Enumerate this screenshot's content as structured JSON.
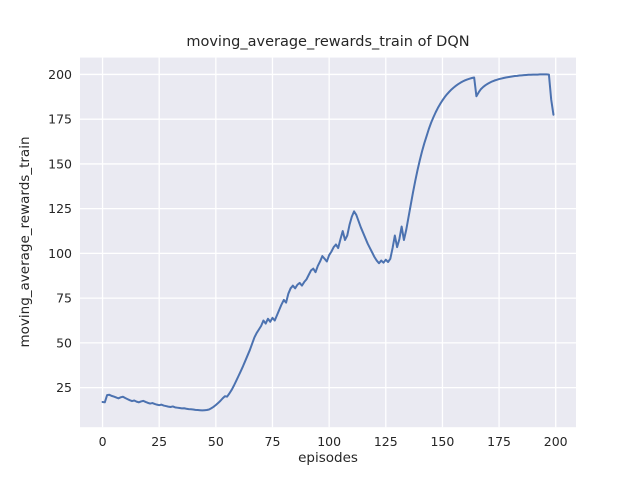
{
  "figure": {
    "background": "#ffffff"
  },
  "chart_data": {
    "type": "line",
    "title": "moving_average_rewards_train of DQN",
    "xlabel": "episodes",
    "ylabel": "moving_average_rewards_train",
    "x_ticks": [
      0,
      25,
      50,
      75,
      100,
      125,
      150,
      175,
      200
    ],
    "y_ticks": [
      25,
      50,
      75,
      100,
      125,
      150,
      175,
      200
    ],
    "xlim": [
      -9.95,
      208.95
    ],
    "ylim": [
      2.9,
      209.4
    ],
    "grid": true,
    "legend_position": "none",
    "style": {
      "axes_background": "#eaeaf2",
      "grid_color": "#ffffff",
      "line_color": "#4c72b0",
      "text_color": "#262626",
      "figure_background": "#ffffff"
    },
    "series": [
      {
        "name": "moving_average_rewards_train",
        "x_start": 0,
        "x_step": 1,
        "values": [
          17.0,
          16.8,
          20.8,
          21.0,
          20.4,
          20.0,
          19.5,
          19.0,
          19.6,
          19.9,
          19.2,
          18.6,
          18.0,
          17.5,
          17.8,
          17.2,
          16.8,
          17.3,
          17.6,
          17.0,
          16.5,
          16.1,
          16.4,
          15.9,
          15.5,
          15.2,
          15.5,
          15.0,
          14.7,
          14.4,
          14.2,
          14.5,
          14.0,
          13.8,
          13.6,
          13.4,
          13.5,
          13.2,
          13.0,
          12.9,
          12.8,
          12.6,
          12.5,
          12.4,
          12.3,
          12.4,
          12.5,
          12.8,
          13.5,
          14.3,
          15.3,
          16.4,
          17.6,
          19.0,
          20.2,
          20.0,
          21.8,
          23.8,
          26.2,
          28.8,
          31.5,
          34.2,
          37.0,
          40.0,
          43.0,
          46.0,
          49.5,
          53.0,
          55.5,
          57.5,
          59.5,
          62.5,
          60.8,
          63.5,
          61.8,
          64.0,
          62.5,
          65.5,
          68.5,
          71.5,
          74.0,
          72.5,
          77.5,
          80.5,
          82.0,
          80.5,
          82.5,
          83.5,
          82.0,
          84.0,
          85.5,
          88.0,
          90.5,
          91.5,
          89.5,
          93.0,
          95.5,
          98.5,
          97.0,
          95.5,
          99.0,
          101.0,
          103.5,
          105.0,
          103.0,
          108.0,
          112.5,
          107.5,
          110.0,
          116.0,
          120.5,
          123.5,
          121.5,
          118.0,
          114.5,
          111.5,
          108.5,
          105.5,
          103.0,
          100.5,
          98.0,
          96.0,
          94.5,
          96.0,
          94.8,
          96.5,
          95.2,
          97.0,
          103.0,
          110.0,
          103.5,
          108.0,
          115.0,
          107.5,
          113.0,
          120.0,
          127.0,
          134.0,
          140.5,
          146.5,
          152.0,
          157.0,
          161.5,
          165.5,
          169.5,
          173.0,
          176.0,
          178.8,
          181.3,
          183.5,
          185.5,
          187.3,
          188.9,
          190.3,
          191.6,
          192.7,
          193.7,
          194.6,
          195.4,
          196.1,
          196.7,
          197.2,
          197.6,
          198.0,
          198.3,
          187.8,
          190.0,
          191.8,
          193.0,
          194.0,
          194.8,
          195.5,
          196.1,
          196.6,
          197.0,
          197.4,
          197.7,
          198.0,
          198.3,
          198.5,
          198.7,
          198.9,
          199.1,
          199.2,
          199.4,
          199.5,
          199.6,
          199.7,
          199.8,
          199.8,
          199.9,
          199.9,
          199.9,
          200.0,
          200.0,
          200.0,
          200.0,
          199.9,
          186.0,
          177.5
        ]
      }
    ]
  }
}
